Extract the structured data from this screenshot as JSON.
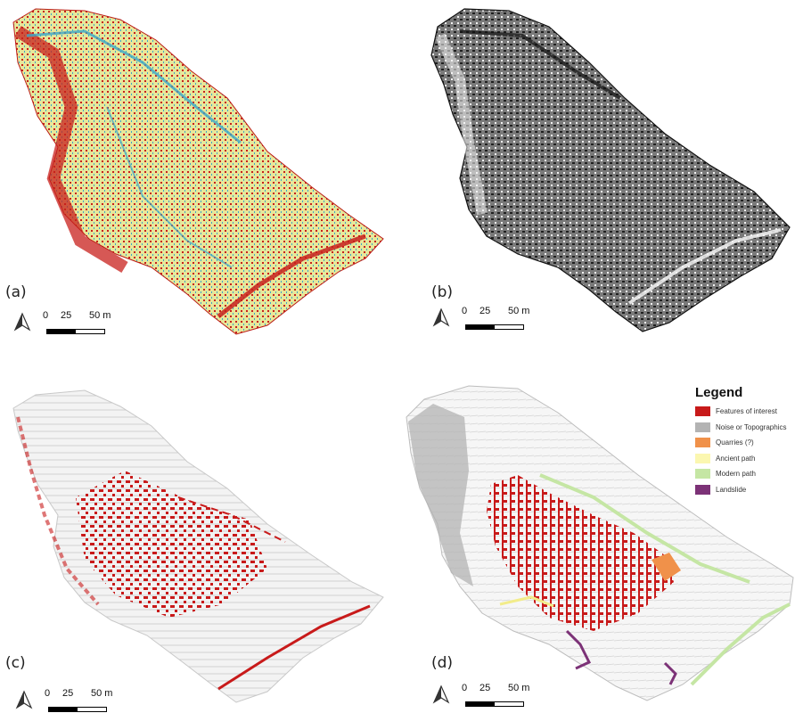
{
  "panels": [
    {
      "label": "(a)",
      "scale": {
        "ticks": [
          "0",
          "25",
          "50 m"
        ]
      }
    },
    {
      "label": "(b)",
      "scale": {
        "ticks": [
          "0",
          "25",
          "50 m"
        ]
      }
    },
    {
      "label": "(c)",
      "scale": {
        "ticks": [
          "0",
          "25",
          "50 m"
        ]
      }
    },
    {
      "label": "(d)",
      "scale": {
        "ticks": [
          "0",
          "25",
          "50 m"
        ]
      }
    }
  ],
  "legend": {
    "title": "Legend",
    "items": [
      {
        "label": "Features of interest",
        "color": "#c81a1a"
      },
      {
        "label": "Noise or Topographics",
        "color": "#b3b3b3"
      },
      {
        "label": "Quarries (?)",
        "color": "#f0914a"
      },
      {
        "label": "Ancient path",
        "color": "#fbf7b0"
      },
      {
        "label": "Modern path",
        "color": "#c5e6a4"
      },
      {
        "label": "Landslide",
        "color": "#7c3277"
      }
    ]
  },
  "colors": {
    "slope_red": "#c8201c",
    "slope_yellow": "#e7e79a",
    "slope_blue": "#3aa6c8",
    "relief_dark": "#1f1f1f",
    "relief_mid": "#7a7a7a",
    "feature_red": "#c81a1a",
    "noise_gray": "#b3b3b3",
    "contour_gray": "#cfcfcf"
  }
}
